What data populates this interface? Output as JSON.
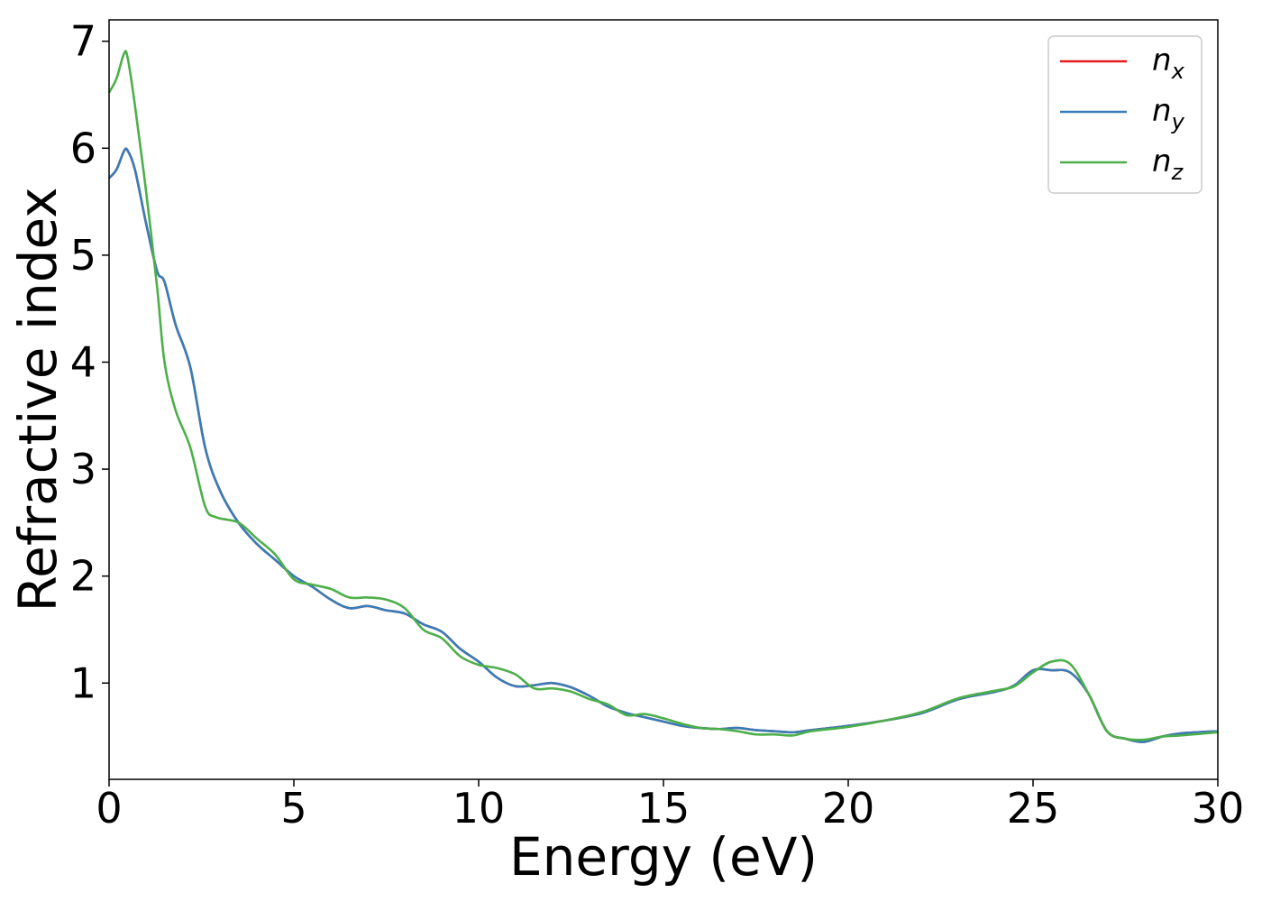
{
  "chart_data": {
    "type": "line",
    "xlabel": "Energy (eV)",
    "ylabel": "Refractive index",
    "xlim": [
      0,
      30
    ],
    "ylim": [
      0.1,
      7.2
    ],
    "xticks": [
      0,
      5,
      10,
      15,
      20,
      25,
      30
    ],
    "yticks": [
      1,
      2,
      3,
      4,
      5,
      6,
      7
    ],
    "grid": false,
    "legend_position": "top-right",
    "series": [
      {
        "name": "n",
        "subscript": "x",
        "color": "#e41a1c",
        "x": [
          0,
          0.2,
          0.4,
          0.5,
          0.7,
          1.0,
          1.3,
          1.5,
          1.8,
          2.2,
          2.6,
          3.0,
          3.5,
          4.0,
          4.5,
          5.0,
          5.5,
          6.0,
          6.5,
          7.0,
          7.5,
          8.0,
          8.5,
          9.0,
          9.5,
          10.0,
          10.5,
          11.0,
          11.5,
          12.0,
          12.5,
          13.0,
          13.5,
          14.0,
          14.5,
          15.0,
          15.5,
          16.0,
          16.5,
          17.0,
          17.5,
          18.0,
          18.5,
          19.0,
          20.0,
          21.0,
          22.0,
          23.0,
          24.0,
          24.5,
          25.0,
          25.5,
          26.0,
          26.5,
          27.0,
          27.5,
          28.0,
          28.5,
          29.0,
          30.0
        ],
        "y": [
          5.72,
          5.8,
          5.97,
          5.98,
          5.8,
          5.3,
          4.85,
          4.75,
          4.35,
          3.95,
          3.2,
          2.8,
          2.5,
          2.3,
          2.15,
          2.0,
          1.9,
          1.78,
          1.7,
          1.72,
          1.68,
          1.65,
          1.55,
          1.48,
          1.32,
          1.2,
          1.05,
          0.97,
          0.98,
          1.0,
          0.96,
          0.88,
          0.78,
          0.72,
          0.68,
          0.64,
          0.6,
          0.58,
          0.57,
          0.58,
          0.56,
          0.55,
          0.54,
          0.56,
          0.6,
          0.65,
          0.72,
          0.85,
          0.92,
          0.98,
          1.12,
          1.12,
          1.1,
          0.9,
          0.55,
          0.48,
          0.45,
          0.5,
          0.53,
          0.55
        ]
      },
      {
        "name": "n",
        "subscript": "y",
        "color": "#377eb8",
        "x": [
          0,
          0.2,
          0.4,
          0.5,
          0.7,
          1.0,
          1.3,
          1.5,
          1.8,
          2.2,
          2.6,
          3.0,
          3.5,
          4.0,
          4.5,
          5.0,
          5.5,
          6.0,
          6.5,
          7.0,
          7.5,
          8.0,
          8.5,
          9.0,
          9.5,
          10.0,
          10.5,
          11.0,
          11.5,
          12.0,
          12.5,
          13.0,
          13.5,
          14.0,
          14.5,
          15.0,
          15.5,
          16.0,
          16.5,
          17.0,
          17.5,
          18.0,
          18.5,
          19.0,
          20.0,
          21.0,
          22.0,
          23.0,
          24.0,
          24.5,
          25.0,
          25.5,
          26.0,
          26.5,
          27.0,
          27.5,
          28.0,
          28.5,
          29.0,
          30.0
        ],
        "y": [
          5.72,
          5.8,
          5.97,
          5.98,
          5.8,
          5.3,
          4.85,
          4.75,
          4.35,
          3.95,
          3.2,
          2.8,
          2.5,
          2.3,
          2.15,
          2.0,
          1.9,
          1.78,
          1.7,
          1.72,
          1.68,
          1.65,
          1.55,
          1.48,
          1.32,
          1.2,
          1.05,
          0.97,
          0.98,
          1.0,
          0.96,
          0.88,
          0.78,
          0.72,
          0.68,
          0.64,
          0.6,
          0.58,
          0.57,
          0.58,
          0.56,
          0.55,
          0.54,
          0.56,
          0.6,
          0.65,
          0.72,
          0.85,
          0.92,
          0.98,
          1.12,
          1.12,
          1.1,
          0.9,
          0.55,
          0.48,
          0.45,
          0.5,
          0.53,
          0.55
        ]
      },
      {
        "name": "n",
        "subscript": "z",
        "color": "#4daf4a",
        "x": [
          0,
          0.2,
          0.4,
          0.5,
          0.7,
          1.0,
          1.3,
          1.5,
          1.8,
          2.2,
          2.6,
          2.9,
          3.5,
          4.0,
          4.5,
          5.0,
          5.5,
          6.0,
          6.5,
          7.0,
          7.5,
          8.0,
          8.5,
          9.0,
          9.5,
          10.0,
          10.5,
          11.0,
          11.5,
          12.0,
          12.5,
          13.0,
          13.5,
          14.0,
          14.5,
          15.0,
          15.5,
          16.0,
          16.5,
          17.0,
          17.5,
          18.0,
          18.5,
          19.0,
          20.0,
          21.0,
          22.0,
          23.0,
          24.0,
          24.5,
          25.0,
          25.5,
          26.0,
          26.5,
          27.0,
          27.5,
          28.0,
          28.5,
          29.0,
          30.0
        ],
        "y": [
          6.52,
          6.65,
          6.88,
          6.85,
          6.4,
          5.6,
          4.7,
          4.0,
          3.55,
          3.2,
          2.65,
          2.55,
          2.5,
          2.35,
          2.2,
          1.97,
          1.92,
          1.88,
          1.8,
          1.8,
          1.78,
          1.7,
          1.5,
          1.42,
          1.25,
          1.17,
          1.14,
          1.08,
          0.95,
          0.95,
          0.92,
          0.85,
          0.8,
          0.7,
          0.71,
          0.67,
          0.62,
          0.58,
          0.57,
          0.55,
          0.52,
          0.52,
          0.51,
          0.55,
          0.59,
          0.65,
          0.73,
          0.86,
          0.93,
          0.97,
          1.1,
          1.2,
          1.18,
          0.9,
          0.55,
          0.48,
          0.47,
          0.5,
          0.51,
          0.54
        ]
      }
    ]
  }
}
